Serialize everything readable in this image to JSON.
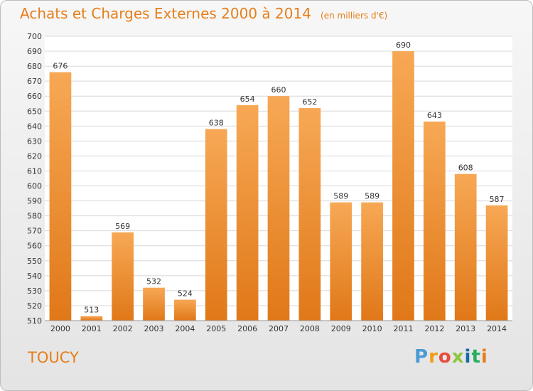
{
  "title": "Achats et Charges Externes 2000 à 2014",
  "unit": "(en milliers d'€)",
  "commune": "TOUCY",
  "logo": {
    "letters": [
      "P",
      "r",
      "o",
      "x",
      "i",
      "t",
      "i"
    ],
    "text": "Proxiti"
  },
  "colors": {
    "title": "#e67e1a",
    "bar_top": "#f7a855",
    "bar_bottom": "#e07818",
    "grid": "#d8d8d8"
  },
  "chart_data": {
    "type": "bar",
    "categories": [
      "2000",
      "2001",
      "2002",
      "2003",
      "2004",
      "2005",
      "2006",
      "2007",
      "2008",
      "2009",
      "2010",
      "2011",
      "2012",
      "2013",
      "2014"
    ],
    "values": [
      676,
      513,
      569,
      532,
      524,
      638,
      654,
      660,
      652,
      589,
      589,
      690,
      643,
      608,
      587
    ],
    "ylim": [
      510,
      700
    ],
    "ytick_step": 10,
    "grid": true,
    "data_labels": true
  }
}
